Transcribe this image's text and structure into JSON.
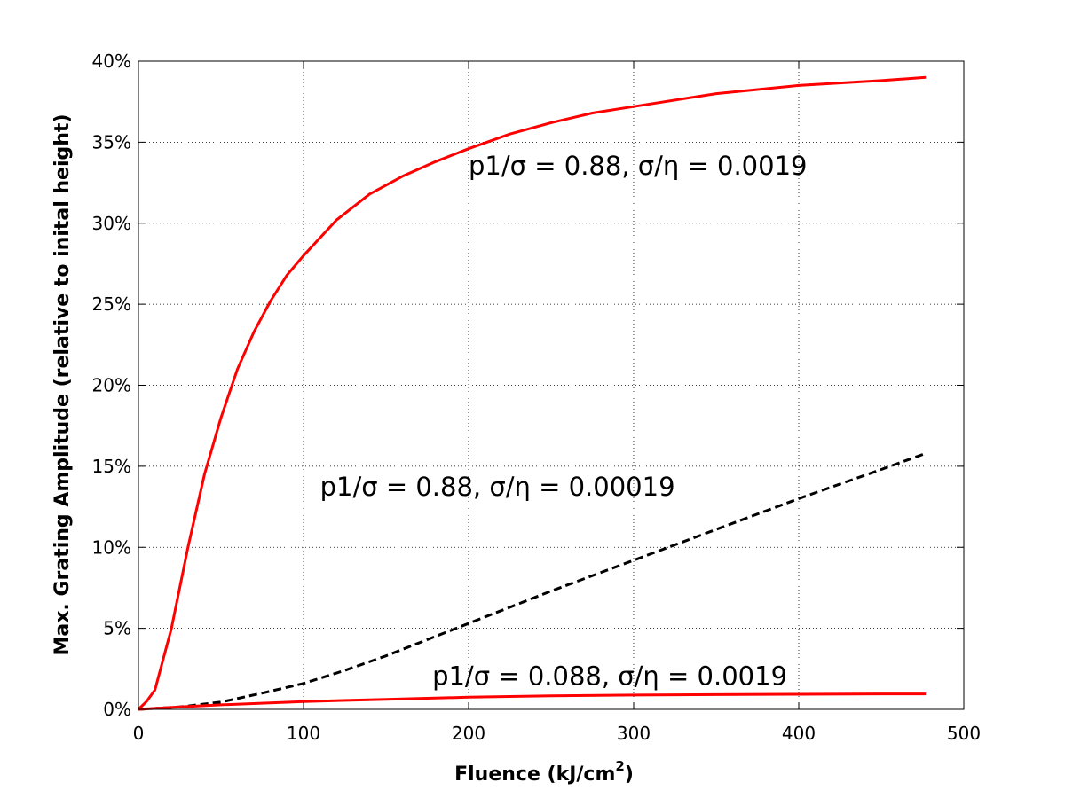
{
  "chart_data": {
    "type": "line",
    "title": "",
    "xlabel": "Fluence (kJ/cm",
    "xlabel_superscript": "2",
    "xlabel_suffix": ")",
    "ylabel": "Max. Grating Amplitude (relative to inital height)",
    "xlim": [
      0,
      500
    ],
    "ylim": [
      0,
      40
    ],
    "x_ticks": [
      0,
      100,
      200,
      300,
      400,
      500
    ],
    "x_tick_labels": [
      "0",
      "100",
      "200",
      "300",
      "400",
      "500"
    ],
    "y_ticks": [
      0,
      5,
      10,
      15,
      20,
      25,
      30,
      35,
      40
    ],
    "y_tick_labels": [
      "0%",
      "5%",
      "10%",
      "15%",
      "20%",
      "25%",
      "30%",
      "35%",
      "40%"
    ],
    "grid": true,
    "series": [
      {
        "color": "#ff0000",
        "style": "solid",
        "x": [
          0,
          5,
          10,
          20,
          30,
          40,
          50,
          60,
          70,
          80,
          90,
          100,
          120,
          140,
          160,
          180,
          200,
          225,
          250,
          275,
          300,
          350,
          400,
          450,
          477
        ],
        "y": [
          0,
          0.5,
          1.2,
          5.0,
          10.0,
          14.5,
          18.0,
          21.0,
          23.3,
          25.2,
          26.8,
          28.0,
          30.2,
          31.8,
          32.9,
          33.8,
          34.6,
          35.5,
          36.2,
          36.8,
          37.2,
          38.0,
          38.5,
          38.8,
          39.0
        ]
      },
      {
        "color": "#000000",
        "style": "dashed",
        "x": [
          0,
          25,
          50,
          75,
          100,
          125,
          150,
          175,
          200,
          250,
          300,
          350,
          400,
          450,
          477
        ],
        "y": [
          0,
          0.15,
          0.45,
          1.0,
          1.6,
          2.4,
          3.3,
          4.3,
          5.3,
          7.3,
          9.2,
          11.1,
          13.0,
          14.8,
          15.8
        ]
      },
      {
        "color": "#ff0000",
        "style": "solid",
        "x": [
          0,
          25,
          50,
          100,
          150,
          200,
          250,
          300,
          350,
          400,
          450,
          477
        ],
        "y": [
          0,
          0.15,
          0.28,
          0.48,
          0.62,
          0.75,
          0.83,
          0.88,
          0.91,
          0.93,
          0.95,
          0.95
        ]
      }
    ],
    "annotations": [
      {
        "text": "p1/σ = 0.88, σ/η = 0.0019",
        "x": 200,
        "y": 33
      },
      {
        "text": "p1/σ = 0.88, σ/η = 0.00019",
        "x": 110,
        "y": 13.2
      },
      {
        "text": "p1/σ = 0.088, σ/η = 0.0019",
        "x": 178,
        "y": 1.5
      }
    ]
  }
}
